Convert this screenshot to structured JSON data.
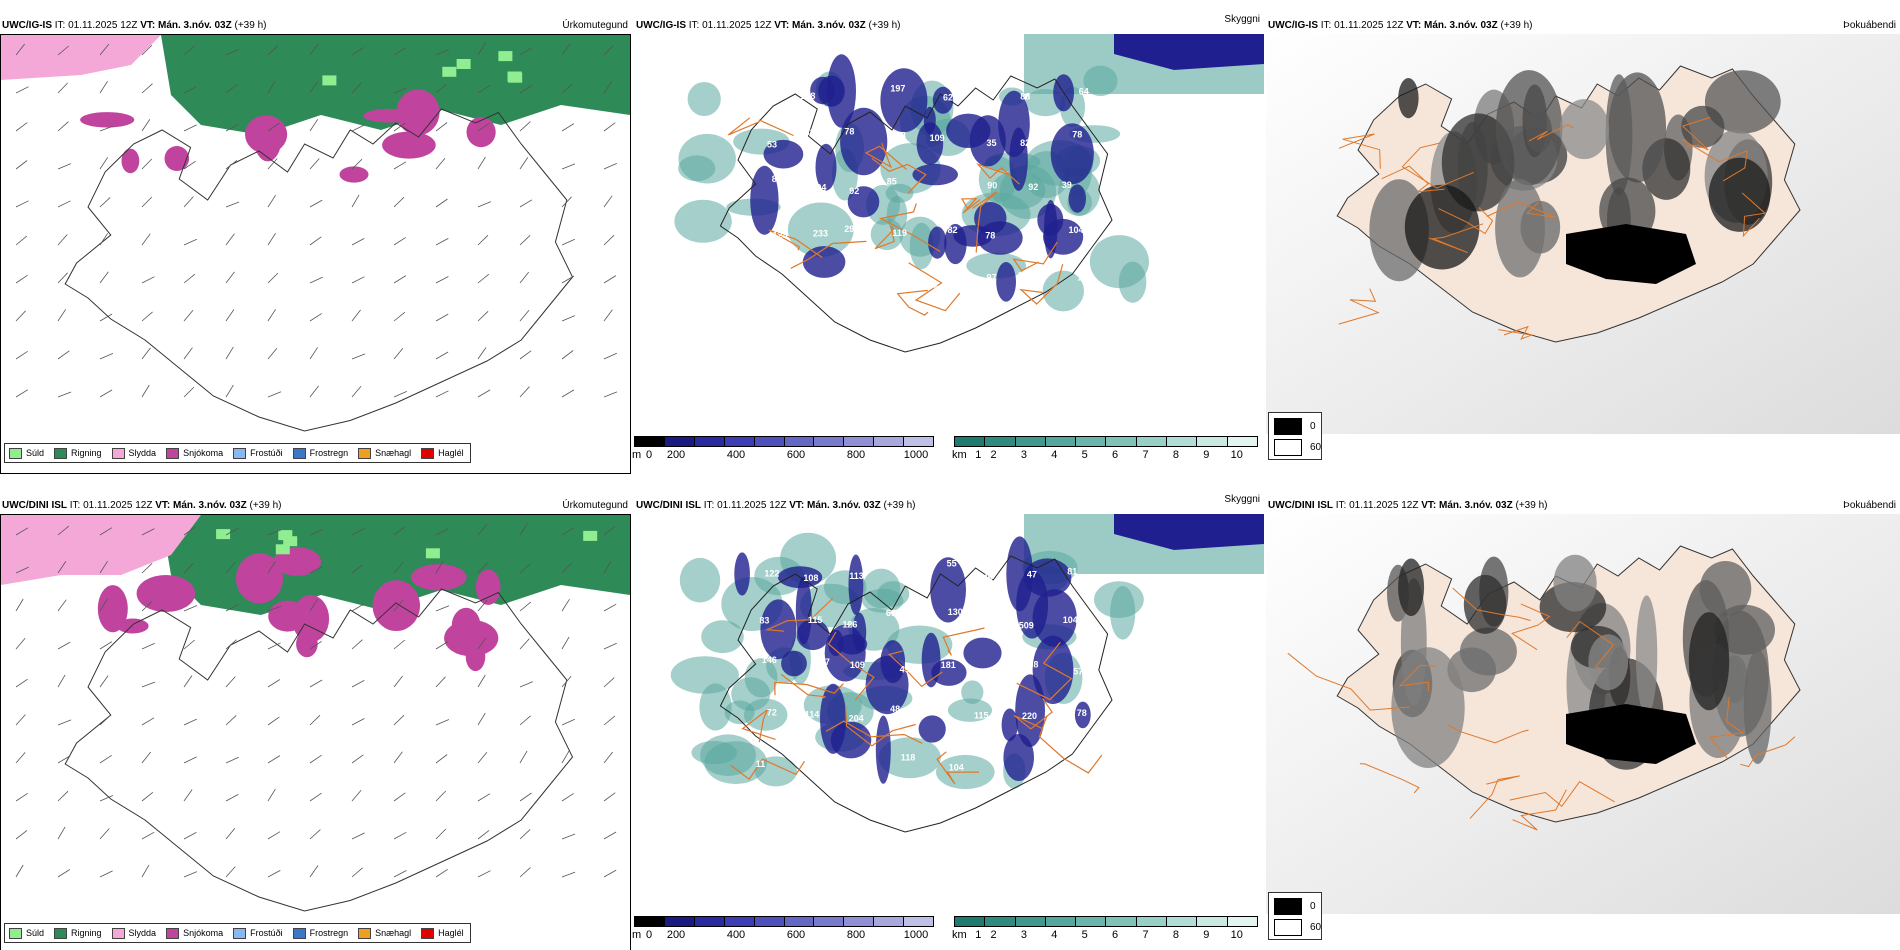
{
  "rows": [
    {
      "id": "top",
      "panels": [
        {
          "model": "UWC/IG-IS",
          "init": "IT: 01.11.2025 12Z",
          "vt_label": "VT:",
          "valid": "Mán. 3.nóv. 03Z",
          "lead": "(+39 h)",
          "field": "Úrkomutegund"
        },
        {
          "model": "UWC/IG-IS",
          "init": "IT: 01.11.2025 12Z",
          "vt_label": "VT:",
          "valid": "Mán. 3.nóv. 03Z",
          "lead": "(+39 h)",
          "field": "Skyggni"
        },
        {
          "model": "UWC/IG-IS",
          "init": "IT: 01.11.2025 12Z",
          "vt_label": "VT:",
          "valid": "Mán. 3.nóv. 03Z",
          "lead": "(+39 h)",
          "field": "Þokuábendi"
        }
      ],
      "vis_labels": [
        {
          "v": "79"
        },
        {
          "v": "108"
        },
        {
          "v": "177"
        },
        {
          "v": "197"
        },
        {
          "v": "62"
        },
        {
          "v": "82"
        },
        {
          "v": "88"
        },
        {
          "v": "64"
        },
        {
          "v": "53"
        },
        {
          "v": "81"
        },
        {
          "v": "78"
        },
        {
          "v": "58"
        },
        {
          "v": "109"
        },
        {
          "v": "35"
        },
        {
          "v": "82"
        },
        {
          "v": "78"
        },
        {
          "v": "84"
        },
        {
          "v": "94"
        },
        {
          "v": "92"
        },
        {
          "v": "85"
        },
        {
          "v": "141"
        },
        {
          "v": "90"
        },
        {
          "v": "92"
        },
        {
          "v": "39"
        },
        {
          "v": "128"
        },
        {
          "v": "233"
        },
        {
          "v": "299"
        },
        {
          "v": "119"
        },
        {
          "v": "82"
        },
        {
          "v": "78"
        },
        {
          "v": "117"
        },
        {
          "v": "104"
        },
        {
          "v": "420"
        },
        {
          "v": "83"
        },
        {
          "v": "87"
        },
        {
          "v": "157"
        },
        {
          "v": "97"
        },
        {
          "v": "97"
        },
        {
          "v": "102"
        },
        {
          "v": "106"
        }
      ]
    },
    {
      "id": "bottom",
      "panels": [
        {
          "model": "UWC/DINI ISL",
          "init": "IT: 01.11.2025 12Z",
          "vt_label": "VT:",
          "valid": "Mán. 3.nóv. 03Z",
          "lead": "(+39 h)",
          "field": "Úrkomutegund"
        },
        {
          "model": "UWC/DINI ISL",
          "init": "IT: 01.11.2025 12Z",
          "vt_label": "VT:",
          "valid": "Mán. 3.nóv. 03Z",
          "lead": "(+39 h)",
          "field": "Skyggni"
        },
        {
          "model": "UWC/DINI ISL",
          "init": "IT: 01.11.2025 12Z",
          "vt_label": "VT:",
          "valid": "Mán. 3.nóv. 03Z",
          "lead": "(+39 h)",
          "field": "Þokuábendi"
        }
      ],
      "vis_labels": [
        {
          "v": "122"
        },
        {
          "v": "108"
        },
        {
          "v": "113"
        },
        {
          "v": "52"
        },
        {
          "v": "55"
        },
        {
          "v": "49"
        },
        {
          "v": "47"
        },
        {
          "v": "81"
        },
        {
          "v": "83"
        },
        {
          "v": "115"
        },
        {
          "v": "126"
        },
        {
          "v": "69"
        },
        {
          "v": "130"
        },
        {
          "v": "176"
        },
        {
          "v": "509"
        },
        {
          "v": "104"
        },
        {
          "v": "146"
        },
        {
          "v": "207"
        },
        {
          "v": "109"
        },
        {
          "v": "49"
        },
        {
          "v": "181"
        },
        {
          "v": "170"
        },
        {
          "v": "98"
        },
        {
          "v": "57"
        },
        {
          "v": "72"
        },
        {
          "v": "114"
        },
        {
          "v": "204"
        },
        {
          "v": "48"
        },
        {
          "v": "62"
        },
        {
          "v": "115"
        },
        {
          "v": "220"
        },
        {
          "v": "78"
        },
        {
          "v": "11"
        },
        {
          "v": "104"
        },
        {
          "v": "110"
        },
        {
          "v": "118"
        },
        {
          "v": "104"
        },
        {
          "v": "97"
        }
      ]
    }
  ],
  "precip_legend": [
    {
      "label": "Súld",
      "color": "#90ee90"
    },
    {
      "label": "Rigning",
      "color": "#2e8b57"
    },
    {
      "label": "Slydda",
      "color": "#f4a8d8"
    },
    {
      "label": "Snjókoma",
      "color": "#c0449e"
    },
    {
      "label": "Frostúði",
      "color": "#88b8f0"
    },
    {
      "label": "Frostregn",
      "color": "#3a78c8"
    },
    {
      "label": "Snæhagl",
      "color": "#f0a020"
    },
    {
      "label": "Haglél",
      "color": "#e00000"
    }
  ],
  "vis_scale_m": {
    "unit": "m",
    "ticks": [
      "0",
      "200",
      "400",
      "600",
      "800",
      "1000"
    ],
    "colors": [
      "#000000",
      "#1a1a80",
      "#2a2aa0",
      "#3c3cb4",
      "#5050bc",
      "#6666c4",
      "#7a7acc",
      "#9090d4",
      "#a8a8dc",
      "#c0c0e6"
    ]
  },
  "vis_scale_km": {
    "unit": "km",
    "ticks": [
      "1",
      "2",
      "3",
      "4",
      "5",
      "6",
      "7",
      "8",
      "9",
      "10"
    ],
    "colors": [
      "#1f7a70",
      "#2f8a80",
      "#40988e",
      "#55a69c",
      "#6ab4aa",
      "#80c2b8",
      "#98d0c6",
      "#b0ddd5",
      "#cae9e3",
      "#e4f4f1"
    ]
  },
  "fog_legend": [
    {
      "label": "0",
      "color": "#000000"
    },
    {
      "label": "60",
      "color": "#ffffff"
    }
  ],
  "colors": {
    "rain": "#2e8b57",
    "snow": "#c0449e",
    "sleet": "#f4a8d8",
    "drizzle": "#90ee90",
    "vis_dark": "#1f1f8f",
    "vis_teal": "#5aa89e",
    "road": "#e0782a",
    "land_tint": "#f6e6da"
  }
}
